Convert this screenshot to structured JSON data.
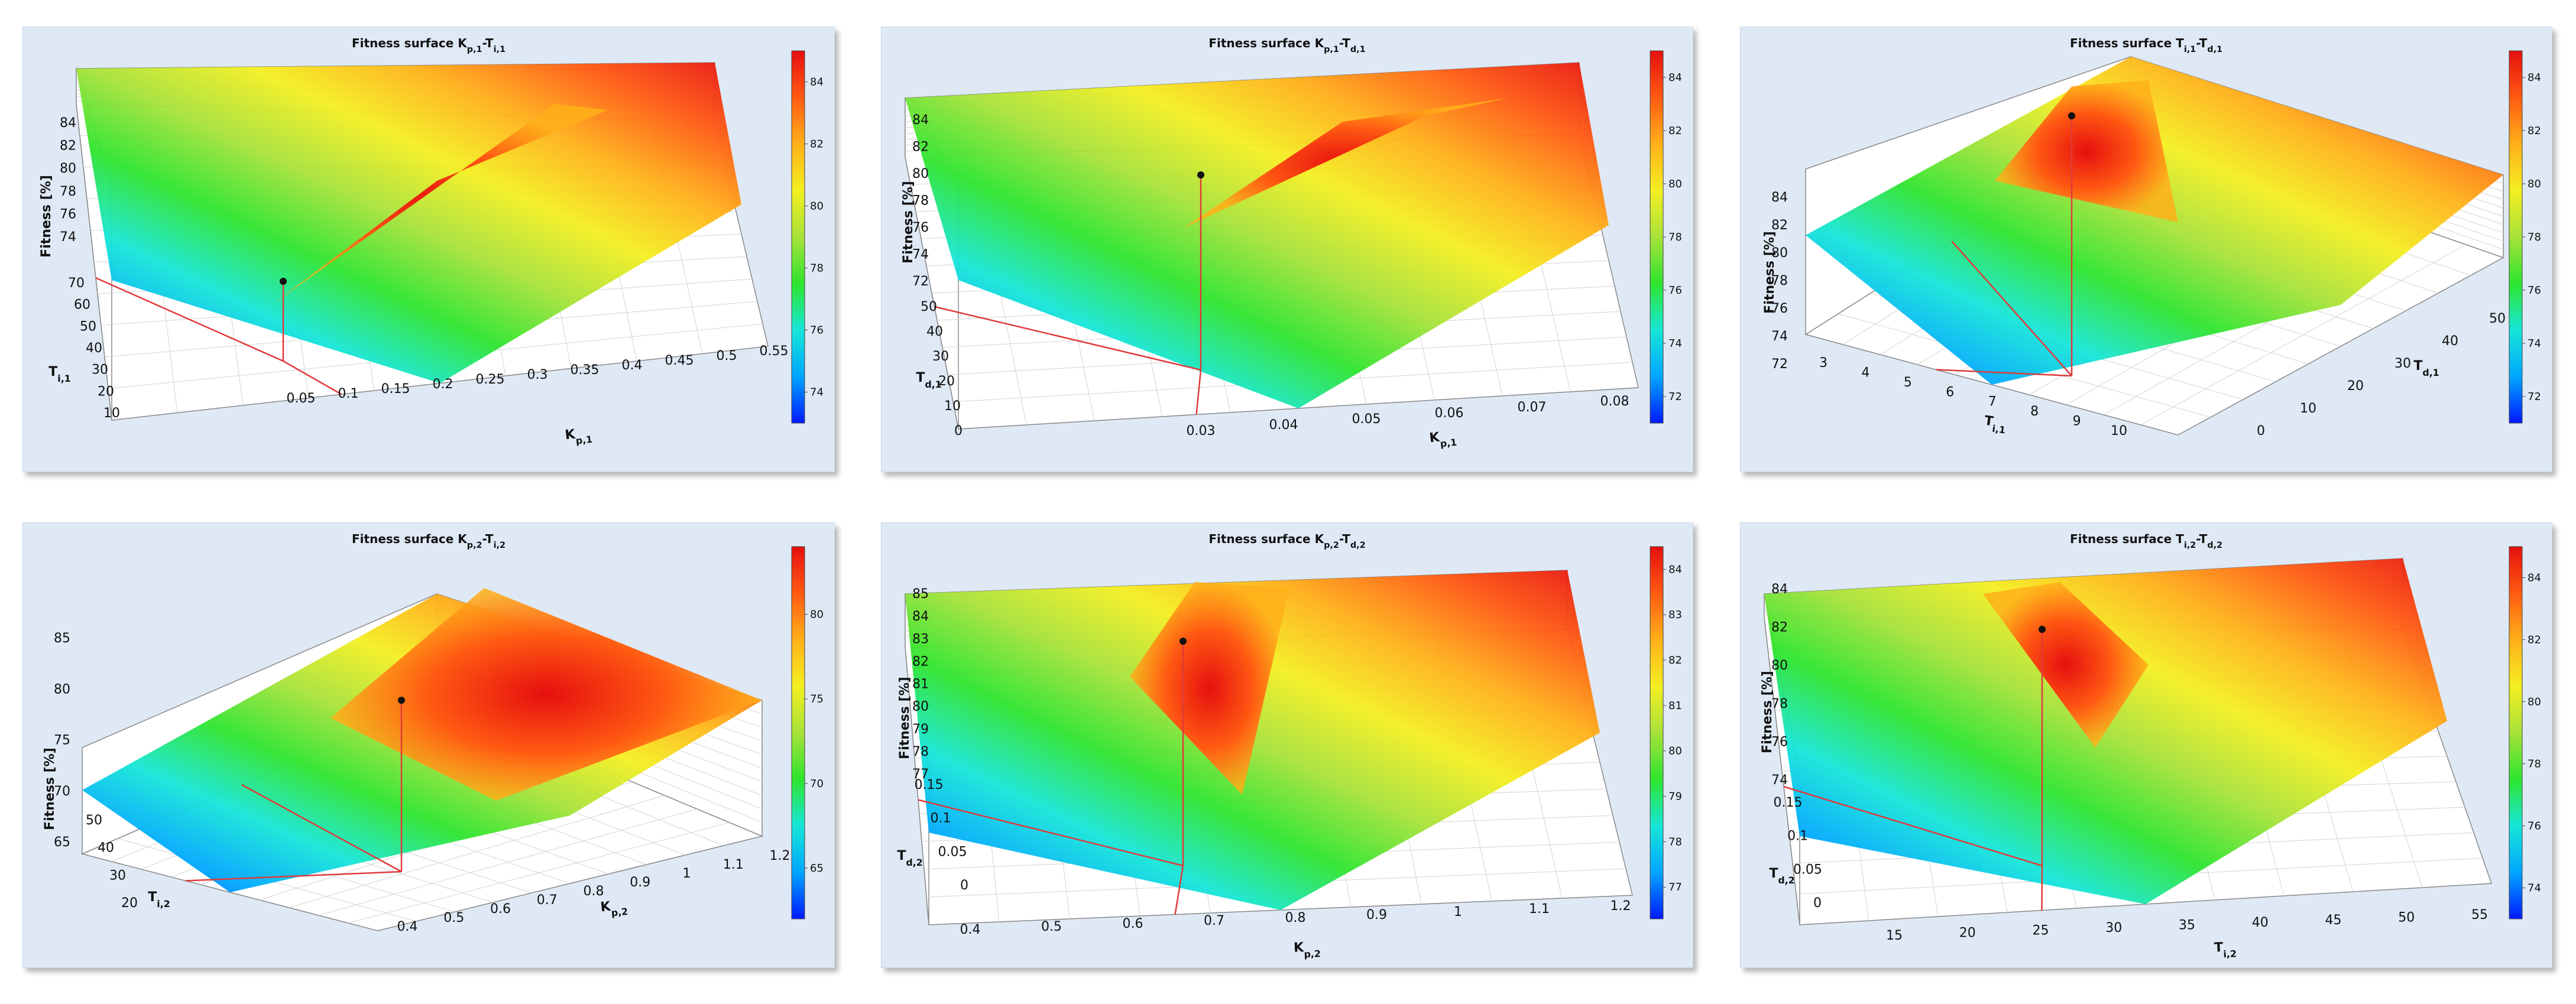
{
  "colors": {
    "panel_bg": "#dfe9f5",
    "stem": "#e03a3a",
    "optimum": "#111111",
    "colormap": [
      "#0019ff",
      "#00a6ff",
      "#16e6d8",
      "#2ee52e",
      "#a8e23a",
      "#f4ef21",
      "#ffb019",
      "#ff5a12",
      "#e60f0f"
    ]
  },
  "chart_data": [
    {
      "id": "kp1-ti1",
      "type": "surface3d",
      "title": "Fitness surface K_{p,1}-T_{i,1}",
      "xlabel": "K_{p,1}",
      "ylabel": "T_{i,1}",
      "zlabel": "Fitness [%]",
      "xticks": [
        "0.05",
        "0.1",
        "0.15",
        "0.2",
        "0.25",
        "0.3",
        "0.35",
        "0.4",
        "0.45",
        "0.5",
        "0.55"
      ],
      "yticks": [
        "10",
        "20",
        "30",
        "40",
        "50",
        "60",
        "70"
      ],
      "zticks": [
        "74",
        "76",
        "78",
        "80",
        "82",
        "84"
      ],
      "cbar_ticks": [
        "74",
        "76",
        "78",
        "80",
        "82",
        "84"
      ],
      "cbar_range": [
        73,
        85
      ],
      "optimum": {
        "x": 0.05,
        "y": 18,
        "z": 84
      }
    },
    {
      "id": "kp1-td1",
      "type": "surface3d",
      "title": "Fitness surface K_{p,1}-T_{d,1}",
      "xlabel": "K_{p,1}",
      "ylabel": "T_{d,1}",
      "zlabel": "Fitness [%]",
      "xticks": [
        "0.03",
        "0.04",
        "0.05",
        "0.06",
        "0.07",
        "0.08"
      ],
      "yticks": [
        "0",
        "10",
        "20",
        "30",
        "40",
        "50"
      ],
      "zticks": [
        "72",
        "74",
        "76",
        "78",
        "80",
        "82",
        "84"
      ],
      "cbar_ticks": [
        "72",
        "74",
        "76",
        "78",
        "80",
        "82",
        "84"
      ],
      "cbar_range": [
        71,
        85
      ],
      "optimum": {
        "x": 0.035,
        "y": 25,
        "z": 84
      }
    },
    {
      "id": "ti1-td1",
      "type": "surface3d",
      "title": "Fitness surface T_{i,1}-T_{d,1}",
      "xlabel": "T_{i,1}",
      "ylabel": "T_{d,1}",
      "zlabel": "Fitness [%]",
      "xticks": [
        "3",
        "4",
        "5",
        "6",
        "7",
        "8",
        "9",
        "10"
      ],
      "yticks": [
        "0",
        "10",
        "20",
        "30",
        "40",
        "50"
      ],
      "zticks": [
        "72",
        "74",
        "76",
        "78",
        "80",
        "82",
        "84"
      ],
      "cbar_ticks": [
        "72",
        "74",
        "76",
        "78",
        "80",
        "82",
        "84"
      ],
      "cbar_range": [
        71,
        85
      ],
      "optimum": {
        "x": 6,
        "y": 25,
        "z": 84
      }
    },
    {
      "id": "kp2-ti2",
      "type": "surface3d",
      "title": "Fitness surface K_{p,2}-T_{i,2}",
      "xlabel": "K_{p,2}",
      "ylabel": "T_{i,2}",
      "zlabel": "Fitness [%]",
      "xticks": [
        "0.4",
        "0.5",
        "0.6",
        "0.7",
        "0.8",
        "0.9",
        "1",
        "1.1",
        "1.2"
      ],
      "yticks": [
        "20",
        "30",
        "40",
        "50"
      ],
      "zticks": [
        "65",
        "70",
        "75",
        "80",
        "85"
      ],
      "cbar_ticks": [
        "65",
        "70",
        "75",
        "80"
      ],
      "cbar_range": [
        62,
        84
      ],
      "optimum": {
        "x": 0.55,
        "y": 30,
        "z": 82
      }
    },
    {
      "id": "kp2-td2",
      "type": "surface3d",
      "title": "Fitness surface K_{p,2}-T_{d,2}",
      "xlabel": "K_{p,2}",
      "ylabel": "T_{d,2}",
      "zlabel": "Fitness [%]",
      "xticks": [
        "0.4",
        "0.5",
        "0.6",
        "0.7",
        "0.8",
        "0.9",
        "1",
        "1.1",
        "1.2"
      ],
      "yticks": [
        "0",
        "0.05",
        "0.1",
        "0.15"
      ],
      "zticks": [
        "77",
        "78",
        "79",
        "80",
        "81",
        "82",
        "83",
        "84",
        "85"
      ],
      "cbar_ticks": [
        "77",
        "78",
        "79",
        "80",
        "81",
        "82",
        "83",
        "84"
      ],
      "cbar_range": [
        76.3,
        84.5
      ],
      "optimum": {
        "x": 0.55,
        "y": 0.07,
        "z": 84
      }
    },
    {
      "id": "ti2-td2",
      "type": "surface3d",
      "title": "Fitness surface T_{i,2}-T_{d,2}",
      "xlabel": "T_{i,2}",
      "ylabel": "T_{d,2}",
      "zlabel": "Fitness [%]",
      "xticks": [
        "15",
        "20",
        "25",
        "30",
        "35",
        "40",
        "45",
        "50",
        "55"
      ],
      "yticks": [
        "0",
        "0.05",
        "0.1",
        "0.15"
      ],
      "zticks": [
        "74",
        "76",
        "78",
        "80",
        "82",
        "84"
      ],
      "cbar_ticks": [
        "74",
        "76",
        "78",
        "80",
        "82",
        "84"
      ],
      "cbar_range": [
        73,
        85
      ],
      "optimum": {
        "x": 25,
        "y": 0.08,
        "z": 84
      }
    }
  ]
}
